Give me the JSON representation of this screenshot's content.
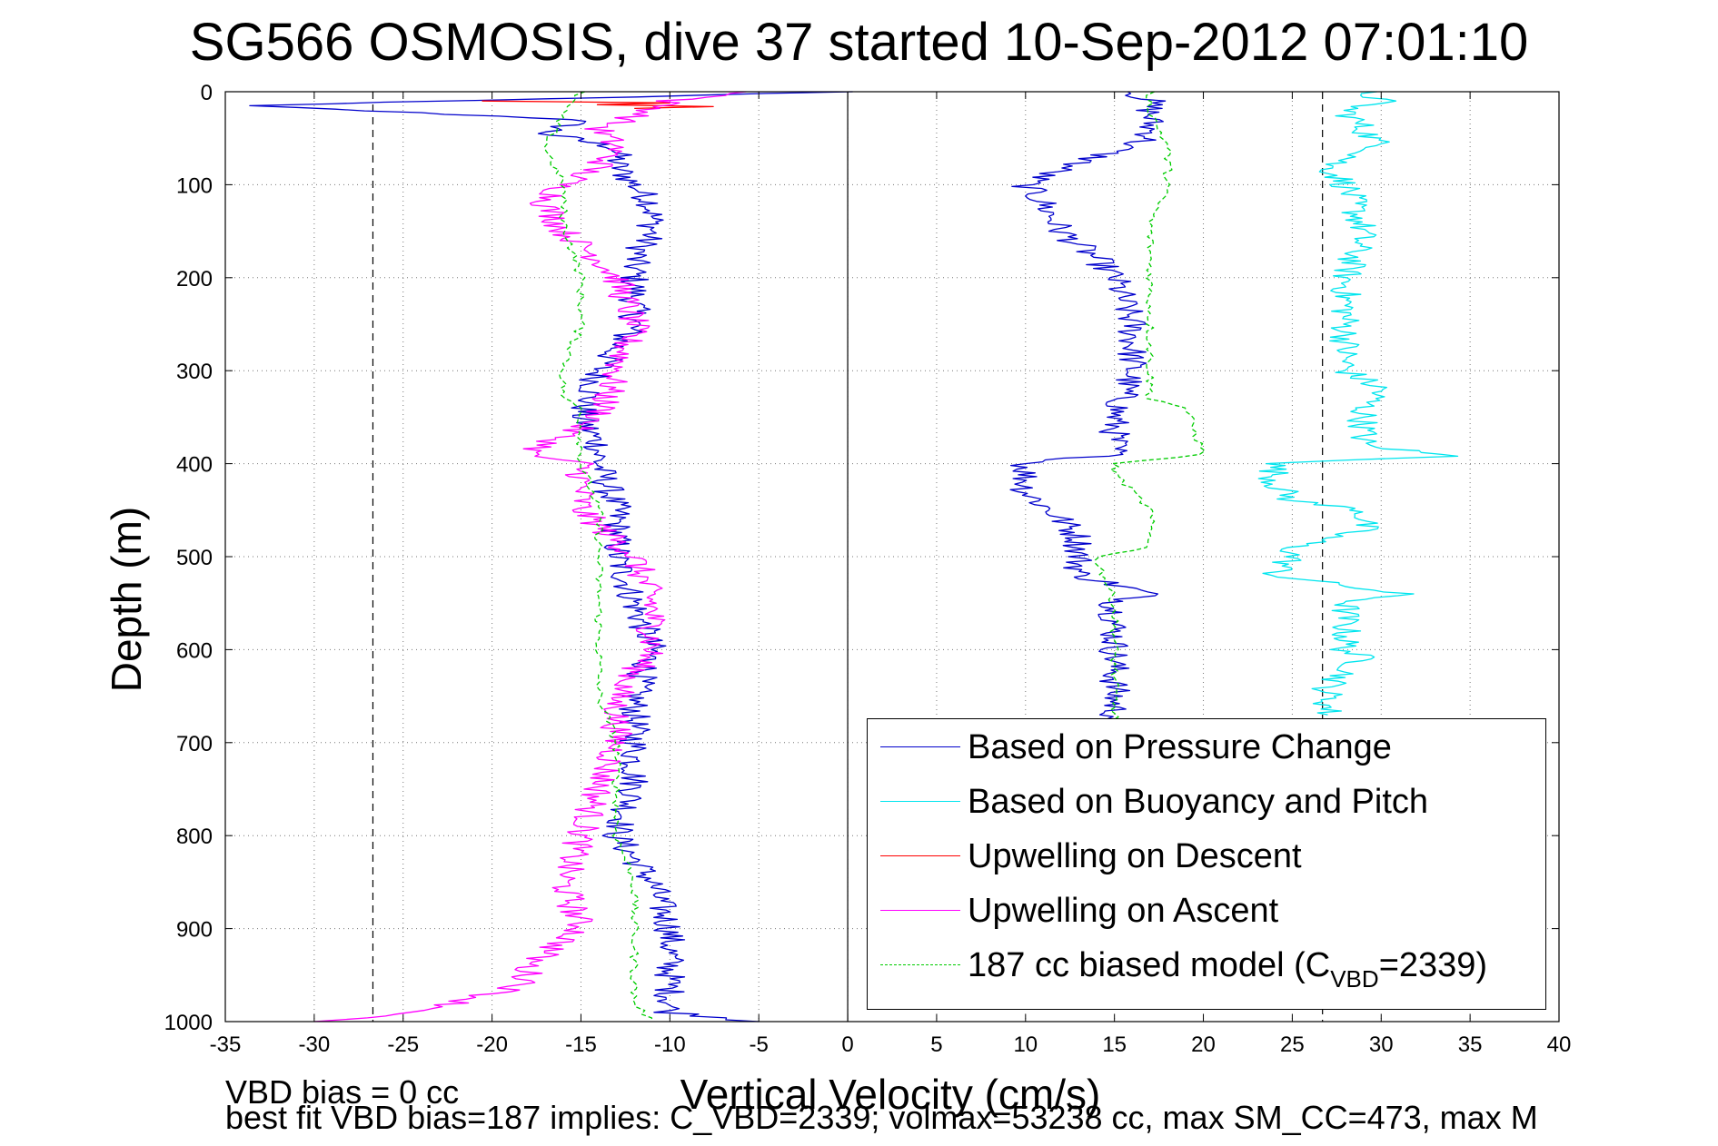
{
  "title": "SG566 OSMOSIS, dive 37 started 10-Sep-2012 07:01:10",
  "footer": {
    "line1": "VBD bias = 0 cc",
    "line2": "best fit VBD bias=187 implies: C_VBD=2339; volmax=53238 cc, max SM_CC=473, max M"
  },
  "legend": {
    "items": [
      {
        "label": "Based on Pressure Change",
        "color": "#0000cc",
        "style": "solid"
      },
      {
        "label": "Based on Buoyancy and Pitch",
        "color": "#00e5ee",
        "style": "solid"
      },
      {
        "label": "Upwelling on Descent",
        "color": "#ff0000",
        "style": "solid"
      },
      {
        "label": "Upwelling on Ascent",
        "color": "#ff00ff",
        "style": "solid"
      },
      {
        "label_prefix": "187 cc biased model (C",
        "label_sub": "VBD",
        "label_suffix": "=2339)",
        "color": "#00cc00",
        "style": "dashed"
      }
    ]
  },
  "chart_data": {
    "type": "line",
    "title": "SG566 OSMOSIS, dive 37 started 10-Sep-2012 07:01:10",
    "xlabel": "Vertical Velocity (cm/s)",
    "ylabel": "Depth (m)",
    "xlim": [
      -35,
      40
    ],
    "ylim": [
      0,
      1000
    ],
    "y_reversed": true,
    "grid": true,
    "legend_position": "bottom-right",
    "x_ticks": [
      -35,
      -30,
      -25,
      -20,
      -15,
      -10,
      -5,
      0,
      5,
      10,
      15,
      20,
      25,
      30,
      35,
      40
    ],
    "y_ticks": [
      0,
      100,
      200,
      300,
      400,
      500,
      600,
      700,
      800,
      900,
      1000
    ],
    "reference_lines": [
      {
        "orientation": "vertical",
        "x": -26.7,
        "style": "dashed",
        "color": "#000000"
      },
      {
        "orientation": "vertical",
        "x": 26.7,
        "style": "dashed",
        "color": "#000000"
      },
      {
        "orientation": "vertical",
        "x": 0,
        "style": "solid",
        "color": "#000000"
      }
    ],
    "series": [
      {
        "name": "Based on Pressure Change (descent)",
        "color": "#0000cc",
        "depth": [
          0,
          15,
          30,
          45,
          60,
          80,
          100,
          120,
          150,
          180,
          200,
          250,
          300,
          350,
          380,
          400,
          450,
          500,
          550,
          600,
          650,
          700,
          750,
          800,
          850,
          900,
          950,
          990,
          1000
        ],
        "velocity": [
          0,
          -34,
          -15,
          -17,
          -13,
          -13,
          -12,
          -11,
          -11,
          -12,
          -12,
          -12,
          -14,
          -15,
          -14,
          -14,
          -13,
          -13,
          -12,
          -11,
          -12,
          -12,
          -12,
          -13,
          -11,
          -10,
          -10,
          -10,
          -5
        ]
      },
      {
        "name": "Based on Pressure Change (ascent)",
        "color": "#0000cc",
        "depth": [
          0,
          10,
          20,
          50,
          70,
          90,
          100,
          120,
          150,
          180,
          200,
          250,
          300,
          350,
          390,
          400,
          430,
          460,
          480,
          500,
          520,
          540,
          550,
          600,
          650,
          680
        ],
        "velocity": [
          16,
          17,
          17,
          17,
          14,
          11,
          10,
          11,
          12,
          14,
          15,
          16,
          16,
          15,
          15,
          10,
          10,
          12,
          13,
          13,
          13,
          17,
          15,
          15,
          15,
          15
        ]
      },
      {
        "name": "Based on Buoyancy and Pitch",
        "color": "#00e5ee",
        "depth": [
          0,
          10,
          20,
          40,
          60,
          80,
          100,
          150,
          200,
          250,
          300,
          320,
          340,
          380,
          392,
          400,
          420,
          440,
          450,
          470,
          490,
          500,
          520,
          540,
          550,
          600,
          610,
          640,
          670
        ],
        "velocity": [
          29,
          30,
          28,
          29,
          30,
          27,
          28,
          29,
          28,
          28,
          28,
          30,
          29,
          29,
          34,
          24,
          24,
          25,
          29,
          29,
          25,
          25,
          24,
          31,
          28,
          28,
          29,
          27,
          27
        ]
      },
      {
        "name": "Upwelling on Descent",
        "color": "#ff0000",
        "depth": [
          10,
          12,
          14,
          16,
          18
        ],
        "velocity": [
          -20,
          -10,
          -14,
          -8,
          -12
        ]
      },
      {
        "name": "Upwelling on Ascent",
        "color": "#ff00ff",
        "depth": [
          0,
          10,
          20,
          40,
          60,
          80,
          100,
          120,
          150,
          180,
          200,
          250,
          300,
          350,
          390,
          400,
          450,
          500,
          550,
          600,
          650,
          700,
          750,
          800,
          850,
          900,
          940,
          960,
          990,
          1000
        ],
        "velocity": [
          -5,
          -10,
          -11,
          -14,
          -13,
          -14,
          -16,
          -17,
          -16,
          -14,
          -13,
          -12,
          -13,
          -14,
          -18,
          -15,
          -15,
          -12,
          -11,
          -11,
          -13,
          -13,
          -14,
          -15,
          -16,
          -15,
          -18,
          -18,
          -24,
          -30
        ]
      },
      {
        "name": "187 cc biased model (C_VBD=2339)",
        "color": "#00cc00",
        "dashed": true,
        "depth": [
          0,
          20,
          60,
          100,
          140,
          200,
          250,
          300,
          330,
          340,
          360,
          390,
          400,
          450,
          500,
          520,
          550,
          600,
          650,
          700,
          750,
          800,
          850,
          900,
          950,
          980,
          1000
        ],
        "velocity": [
          -15,
          -16,
          -17,
          -16,
          -16,
          -15,
          -15,
          -16,
          -16,
          -15,
          -15,
          -15,
          -15,
          -14,
          -14,
          -14,
          -14,
          -14,
          -14,
          -13,
          -13,
          -13,
          -12,
          -12,
          -12,
          -12,
          -11
        ]
      },
      {
        "name": "187 cc biased model (ascent)",
        "color": "#00cc00",
        "dashed": true,
        "depth": [
          0,
          20,
          60,
          100,
          140,
          200,
          250,
          300,
          330,
          340,
          390,
          400,
          410,
          450,
          490,
          500,
          550,
          600,
          650,
          680
        ],
        "velocity": [
          17,
          17,
          18,
          18,
          17,
          17,
          17,
          17,
          17,
          19,
          20,
          15,
          15,
          17,
          17,
          14,
          15,
          15,
          15,
          15
        ]
      }
    ]
  }
}
